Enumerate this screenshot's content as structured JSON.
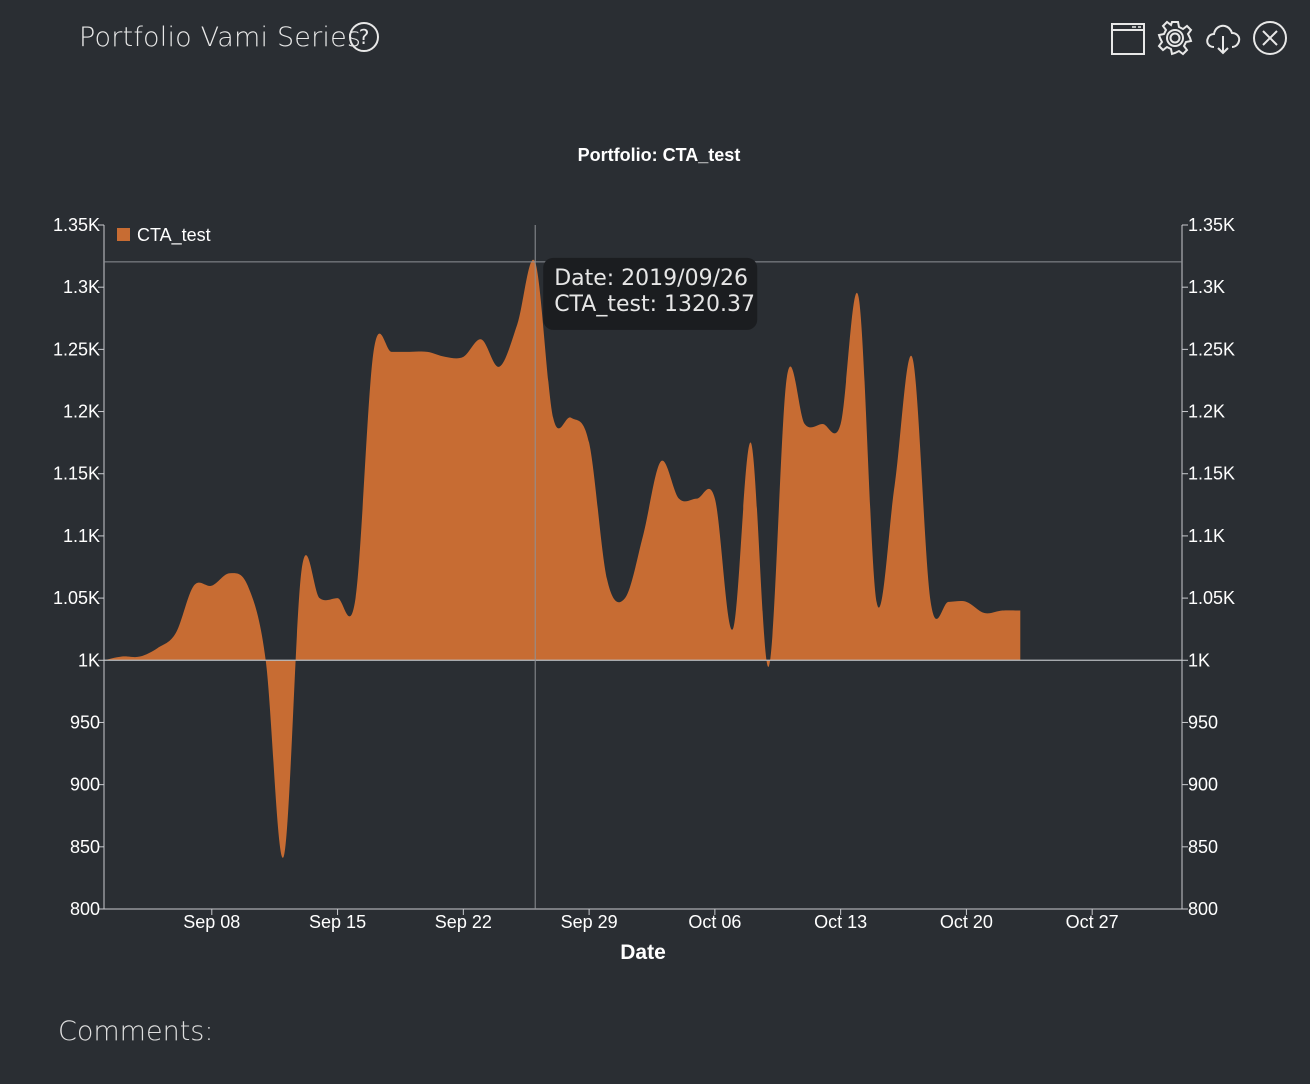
{
  "header": {
    "title": "Portfolio Vami Series",
    "help_label": "?"
  },
  "toolbar": {
    "icons": [
      "window-icon",
      "gear-icon",
      "cloud-download-icon",
      "close-icon"
    ]
  },
  "comments_label": "Comments:",
  "colors": {
    "background": "#2a2e33",
    "series": "#c76c33"
  },
  "chart_data": {
    "type": "area",
    "title": "Portfolio: CTA_test",
    "xlabel": "Date",
    "ylabel": "",
    "ylim": [
      800,
      1350
    ],
    "xlim": [
      "2019-09-02",
      "2019-11-01"
    ],
    "yticks": [
      800,
      850,
      900,
      950,
      1000,
      1050,
      1100,
      1150,
      1200,
      1250,
      1300,
      1350
    ],
    "ytick_labels": [
      "800",
      "850",
      "900",
      "950",
      "1K",
      "1.05K",
      "1.1K",
      "1.15K",
      "1.2K",
      "1.25K",
      "1.3K",
      "1.35K"
    ],
    "xticks": [
      "2019-09-08",
      "2019-09-15",
      "2019-09-22",
      "2019-09-29",
      "2019-10-06",
      "2019-10-13",
      "2019-10-20",
      "2019-10-27"
    ],
    "xtick_labels": [
      "Sep 08",
      "Sep 15",
      "Sep 22",
      "Sep 29",
      "Oct 06",
      "Oct 13",
      "Oct 20",
      "Oct 27"
    ],
    "baseline": 1000,
    "legend": {
      "position": "top-left"
    },
    "series": [
      {
        "name": "CTA_test",
        "x": [
          "2019-09-02",
          "2019-09-03",
          "2019-09-04",
          "2019-09-05",
          "2019-09-06",
          "2019-09-07",
          "2019-09-08",
          "2019-09-09",
          "2019-09-10",
          "2019-09-11",
          "2019-09-12",
          "2019-09-13",
          "2019-09-14",
          "2019-09-15",
          "2019-09-16",
          "2019-09-17",
          "2019-09-18",
          "2019-09-19",
          "2019-09-20",
          "2019-09-21",
          "2019-09-22",
          "2019-09-23",
          "2019-09-24",
          "2019-09-25",
          "2019-09-26",
          "2019-09-27",
          "2019-09-28",
          "2019-09-29",
          "2019-09-30",
          "2019-10-01",
          "2019-10-02",
          "2019-10-03",
          "2019-10-04",
          "2019-10-05",
          "2019-10-06",
          "2019-10-07",
          "2019-10-08",
          "2019-10-09",
          "2019-10-10",
          "2019-10-11",
          "2019-10-12",
          "2019-10-13",
          "2019-10-14",
          "2019-10-15",
          "2019-10-16",
          "2019-10-17",
          "2019-10-18",
          "2019-10-19",
          "2019-10-20",
          "2019-10-21",
          "2019-10-22",
          "2019-10-23"
        ],
        "y": [
          1000,
          1003,
          1003,
          1010,
          1022,
          1060,
          1060,
          1070,
          1060,
          1000,
          842,
          1073,
          1050,
          1050,
          1050,
          1248,
          1248,
          1248,
          1248,
          1244,
          1244,
          1258,
          1236,
          1270,
          1320,
          1195,
          1195,
          1175,
          1065,
          1050,
          1100,
          1160,
          1130,
          1130,
          1130,
          1025,
          1175,
          995,
          1227,
          1190,
          1190,
          1190,
          1292,
          1047,
          1140,
          1243,
          1048,
          1047,
          1047,
          1038,
          1040,
          1040
        ]
      }
    ],
    "tooltip": {
      "date_line": "Date: 2019/09/26",
      "value_line": "CTA_test: 1320.37",
      "x": "2019-09-26",
      "y": 1320.37
    }
  }
}
